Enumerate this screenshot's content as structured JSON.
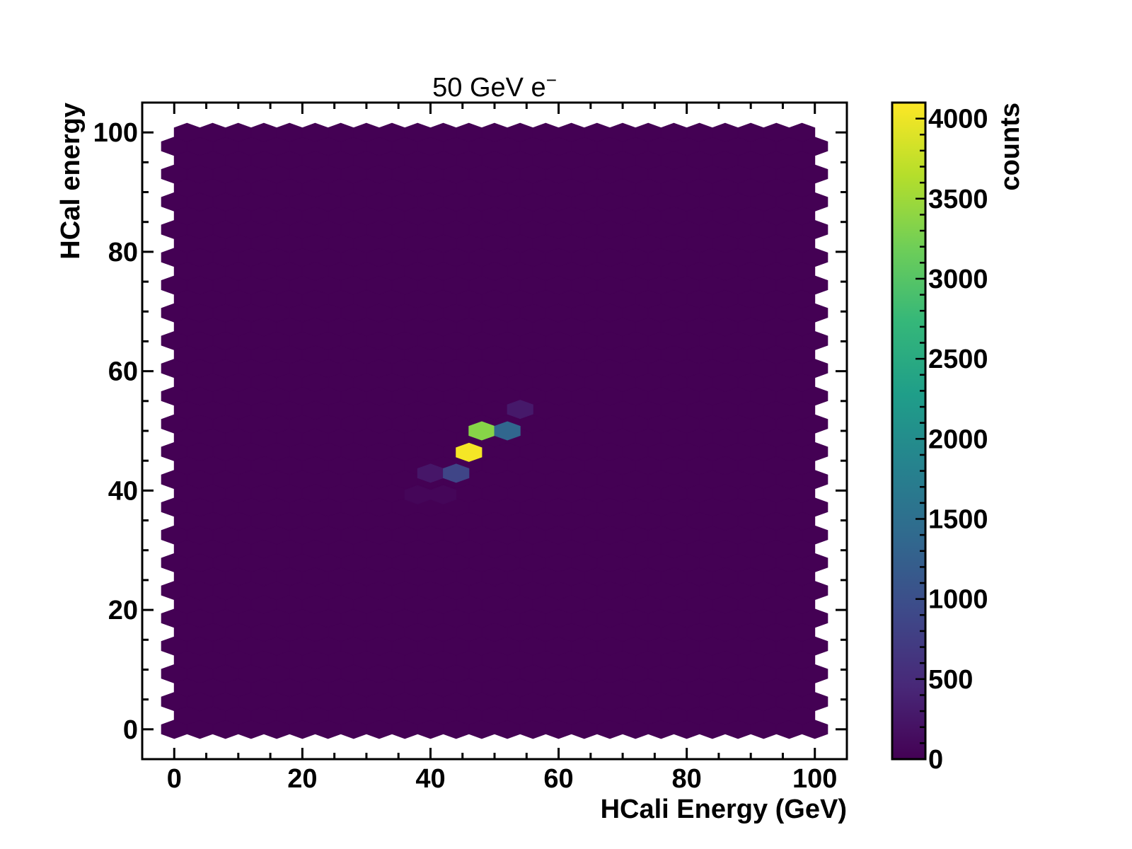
{
  "chart_data": {
    "type": "heatmap",
    "title": "50 GeV e",
    "title_superscript": "−",
    "xlabel": "HCali Energy (GeV)",
    "ylabel": "HCal energy",
    "xlim": [
      -5,
      105
    ],
    "ylim": [
      -5,
      105
    ],
    "x_ticks": [
      0,
      20,
      40,
      60,
      80,
      100
    ],
    "y_ticks": [
      0,
      20,
      40,
      60,
      80,
      100
    ],
    "grid": false,
    "binning": "hexagonal",
    "hex_range_x": [
      0,
      100
    ],
    "hex_range_y": [
      0,
      100
    ],
    "hex_cols": 25,
    "colormap": [
      "#440154",
      "#482878",
      "#3e4989",
      "#31688e",
      "#26828e",
      "#1f9e89",
      "#35b779",
      "#6ece58",
      "#b5de2b",
      "#fde725"
    ],
    "background_value": 0,
    "bins": [
      {
        "x": 40,
        "y": 42.9,
        "count": 250
      },
      {
        "x": 44,
        "y": 42.9,
        "count": 850
      },
      {
        "x": 46,
        "y": 46.4,
        "count": 4050
      },
      {
        "x": 48,
        "y": 50.0,
        "count": 3350
      },
      {
        "x": 52,
        "y": 50.0,
        "count": 1350
      },
      {
        "x": 54,
        "y": 53.6,
        "count": 280
      },
      {
        "x": 38,
        "y": 39.3,
        "count": 60
      },
      {
        "x": 42,
        "y": 39.3,
        "count": 60
      }
    ],
    "colorbar": {
      "label": "counts",
      "range": [
        0,
        4100
      ],
      "ticks": [
        0,
        500,
        1000,
        1500,
        2000,
        2500,
        3000,
        3500,
        4000
      ]
    }
  }
}
